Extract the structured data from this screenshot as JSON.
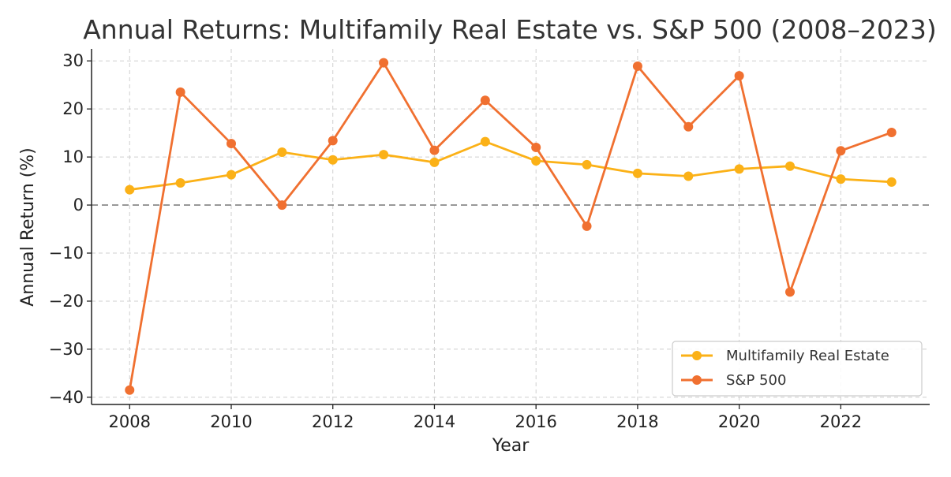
{
  "chart_data": {
    "type": "line",
    "title": "Annual Returns: Multifamily Real Estate vs. S&P 500 (2008–2023)",
    "xlabel": "Year",
    "ylabel": "Annual Return (%)",
    "x": [
      2008,
      2009,
      2010,
      2011,
      2012,
      2013,
      2014,
      2015,
      2016,
      2017,
      2018,
      2019,
      2020,
      2021,
      2022,
      2023
    ],
    "xlim": [
      2007.25,
      2023.75
    ],
    "ylim": [
      -41.5,
      32.5
    ],
    "x_ticks": [
      2008,
      2010,
      2012,
      2014,
      2016,
      2018,
      2020,
      2022
    ],
    "x_tick_labels": [
      "2008",
      "2010",
      "2012",
      "2014",
      "2016",
      "2018",
      "2020",
      "2022"
    ],
    "y_ticks": [
      30,
      20,
      10,
      0,
      -10,
      -20,
      -30,
      -40
    ],
    "y_tick_labels": [
      "30",
      "20",
      "10",
      "0",
      "−10",
      "−20",
      "−30",
      "−40"
    ],
    "grid": true,
    "reference_line": {
      "y": 0,
      "style": "dashed",
      "color": "#808080"
    },
    "legend_position": "lower-right",
    "series": [
      {
        "name": "Multifamily Real Estate",
        "color": "#FBB117",
        "marker": "circle",
        "values": [
          3.2,
          4.6,
          6.3,
          11.0,
          9.4,
          10.5,
          8.9,
          13.2,
          9.2,
          8.4,
          6.6,
          6.0,
          7.5,
          8.1,
          5.4,
          4.8
        ]
      },
      {
        "name": "S&P 500",
        "color": "#F07030",
        "marker": "circle",
        "values": [
          -38.5,
          23.5,
          12.8,
          0.0,
          13.4,
          29.6,
          11.4,
          21.8,
          12.0,
          -4.4,
          28.9,
          16.3,
          26.9,
          -18.1,
          11.3,
          15.1
        ]
      }
    ]
  }
}
